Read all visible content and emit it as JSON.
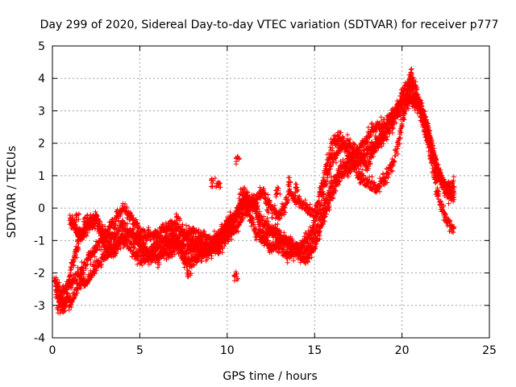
{
  "chart_data": {
    "type": "scatter",
    "title": "Day 299 of 2020, Sidereal Day-to-day VTEC variation (SDTVAR) for receiver p777",
    "xlabel": "GPS time / hours",
    "ylabel": "SDTVAR / TECUs",
    "xlim": [
      0,
      25
    ],
    "ylim": [
      -4,
      5
    ],
    "xticks": [
      0,
      5,
      10,
      15,
      20,
      25
    ],
    "yticks": [
      -4,
      -3,
      -2,
      -1,
      0,
      1,
      2,
      3,
      4,
      5
    ],
    "grid": true,
    "marker": "+",
    "series": [
      {
        "name": "SDTVAR",
        "color": "#ff0000",
        "tracks": [
          {
            "x": [
              0.1,
              0.5,
              1.0,
              1.5,
              2.0,
              2.5,
              3.0,
              3.5,
              4.0,
              4.5,
              5.0,
              5.5,
              6.0,
              6.5,
              7.0,
              7.5,
              8.0,
              8.5,
              9.0,
              9.5,
              10.0,
              10.5,
              11.0,
              11.5,
              12.0,
              12.5,
              13.0,
              13.5,
              14.0,
              14.5,
              15.0,
              15.5,
              16.0,
              16.5,
              17.0,
              17.5,
              18.0,
              18.5,
              19.0,
              19.5,
              20.0,
              20.5,
              21.0,
              21.5,
              22.0,
              22.5,
              23.0
            ],
            "y": [
              -2.2,
              -2.6,
              -2.3,
              -2.1,
              -1.6,
              -1.2,
              -1.0,
              -0.9,
              -0.5,
              -0.8,
              -1.2,
              -1.4,
              -1.1,
              -0.9,
              -0.9,
              -1.3,
              -1.2,
              -1.1,
              -1.2,
              -1.3,
              -0.9,
              -0.3,
              0.5,
              0.1,
              -0.4,
              -0.7,
              -0.8,
              -1.1,
              -1.2,
              -1.3,
              -0.9,
              0.0,
              0.8,
              1.2,
              1.5,
              1.8,
              2.2,
              2.5,
              2.6,
              2.9,
              3.3,
              3.5,
              3.2,
              2.5,
              1.2,
              0.5,
              0.3
            ]
          },
          {
            "x": [
              0.3,
              0.7,
              1.1,
              1.5,
              2.0,
              2.5,
              3.0,
              3.5,
              4.0,
              4.5,
              5.0,
              5.5,
              6.0,
              6.5,
              7.0,
              7.5,
              8.0,
              8.5,
              9.0,
              9.5,
              10.0,
              10.5,
              11.0,
              11.5,
              12.0,
              12.5,
              13.0,
              13.5,
              14.0,
              14.5,
              15.0,
              15.5,
              16.0,
              16.5,
              17.0,
              17.5,
              18.0,
              18.5,
              19.0,
              19.5,
              20.0,
              20.5,
              21.0,
              21.5,
              22.0,
              22.5,
              23.0
            ],
            "y": [
              -3.0,
              -3.1,
              -1.8,
              -1.0,
              -0.6,
              -0.4,
              -1.2,
              -1.4,
              -1.0,
              -0.7,
              -1.0,
              -1.4,
              -1.6,
              -1.2,
              -1.0,
              -1.6,
              -1.7,
              -1.4,
              -1.2,
              -1.0,
              -0.6,
              -0.2,
              0.3,
              -0.6,
              -1.0,
              -0.6,
              -1.2,
              -1.5,
              -1.3,
              -1.0,
              -0.5,
              0.5,
              1.5,
              1.9,
              2.0,
              1.7,
              1.3,
              1.9,
              2.2,
              2.6,
              3.6,
              3.8,
              3.1,
              2.2,
              1.0,
              0.6,
              0.4
            ]
          },
          {
            "x": [
              0.2,
              0.6,
              1.0,
              1.5,
              2.0,
              2.5,
              3.0,
              3.5,
              4.0,
              4.5,
              5.0,
              5.5,
              6.0,
              6.5,
              7.0,
              7.5,
              8.0,
              8.5,
              9.0,
              9.5,
              10.0,
              10.5,
              11.0,
              11.5,
              12.0,
              12.5,
              13.0,
              13.5,
              14.0,
              14.5,
              15.0,
              15.5,
              16.0,
              16.5,
              17.0,
              17.5,
              18.0,
              18.5,
              19.0,
              19.5,
              20.0,
              20.5,
              21.0,
              21.5,
              22.0,
              22.5,
              23.0
            ],
            "y": [
              -2.6,
              -2.9,
              -2.9,
              -2.4,
              -2.2,
              -1.8,
              -1.5,
              -1.2,
              -0.9,
              -1.2,
              -1.6,
              -1.5,
              -1.3,
              -1.4,
              -1.2,
              -0.9,
              -1.1,
              -1.4,
              -1.3,
              -1.1,
              -0.8,
              -0.6,
              -0.1,
              0.2,
              -0.8,
              -1.3,
              -1.0,
              -1.0,
              -1.4,
              -1.6,
              -1.2,
              -0.4,
              0.4,
              1.0,
              1.2,
              1.4,
              1.8,
              2.0,
              2.3,
              2.8,
              3.0,
              3.3,
              3.0,
              2.0,
              0.5,
              -0.3,
              -0.7
            ]
          },
          {
            "x": [
              1.0,
              1.3,
              1.6,
              2.0,
              2.5,
              3.0,
              3.5,
              4.0,
              4.5,
              5.0,
              5.5,
              6.0,
              6.5,
              7.0,
              7.5,
              8.0,
              8.5,
              9.0,
              9.5,
              10.0,
              10.5,
              11.0,
              11.5,
              12.0,
              12.5,
              13.0,
              13.5,
              14.0,
              14.5,
              15.0,
              15.5,
              16.0,
              16.5,
              17.0,
              17.5,
              18.0,
              18.5,
              19.0,
              19.5,
              20.0,
              20.5,
              21.0,
              21.5,
              22.0,
              22.5,
              23.0
            ],
            "y": [
              -0.3,
              -0.6,
              -0.9,
              -0.5,
              -0.3,
              -0.8,
              -0.5,
              0.0,
              -0.3,
              -0.7,
              -0.9,
              -0.8,
              -0.6,
              -0.5,
              -0.8,
              -0.7,
              -0.9,
              -1.0,
              -0.9,
              -0.5,
              -0.2,
              0.2,
              0.1,
              0.5,
              0.0,
              -0.3,
              0.4,
              0.3,
              0.0,
              -0.2,
              0.9,
              2.0,
              2.2,
              1.6,
              1.0,
              0.8,
              0.6,
              0.9,
              1.4,
              2.5,
              4.2,
              3.3,
              2.4,
              1.3,
              0.6,
              0.8
            ]
          }
        ],
        "isolated_points": {
          "x": [
            9.2,
            9.5,
            10.6,
            10.8,
            13.5,
            14.0,
            1.4,
            1.9,
            7.2,
            7.8,
            12.9,
            10.5
          ],
          "y": [
            0.8,
            0.7,
            1.5,
            0.5,
            0.8,
            0.6,
            -0.3,
            -0.3,
            -0.3,
            -2.0,
            0.5,
            -2.1
          ]
        }
      }
    ]
  }
}
